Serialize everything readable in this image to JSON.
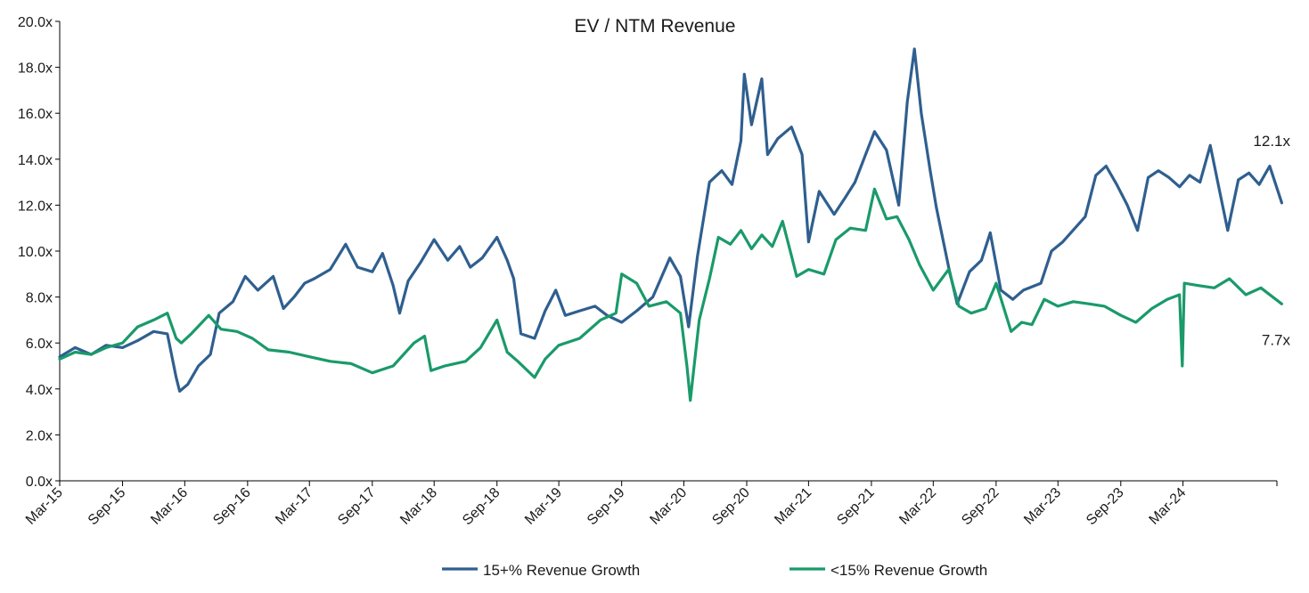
{
  "chart_data": {
    "type": "line",
    "title": "EV / NTM Revenue",
    "xlabel": "",
    "ylabel": "",
    "ylim": [
      0,
      20
    ],
    "y_ticks": [
      "0.0x",
      "2.0x",
      "4.0x",
      "6.0x",
      "8.0x",
      "10.0x",
      "12.0x",
      "14.0x",
      "16.0x",
      "18.0x",
      "20.0x"
    ],
    "x_range": [
      "2015-03",
      "2024-12"
    ],
    "x_ticks": [
      {
        "date": "2015-03",
        "label": "Mar-15"
      },
      {
        "date": "2015-09",
        "label": "Sep-15"
      },
      {
        "date": "2016-03",
        "label": "Mar-16"
      },
      {
        "date": "2016-09",
        "label": "Sep-16"
      },
      {
        "date": "2017-03",
        "label": "Mar-17"
      },
      {
        "date": "2017-09",
        "label": "Sep-17"
      },
      {
        "date": "2018-03",
        "label": "Mar-18"
      },
      {
        "date": "2018-09",
        "label": "Sep-18"
      },
      {
        "date": "2019-03",
        "label": "Mar-19"
      },
      {
        "date": "2019-09",
        "label": "Sep-19"
      },
      {
        "date": "2020-03",
        "label": "Mar-20"
      },
      {
        "date": "2020-09",
        "label": "Sep-20"
      },
      {
        "date": "2021-03",
        "label": "Mar-21"
      },
      {
        "date": "2021-09",
        "label": "Sep-21"
      },
      {
        "date": "2022-03",
        "label": "Mar-22"
      },
      {
        "date": "2022-09",
        "label": "Sep-22"
      },
      {
        "date": "2023-03",
        "label": "Mar-23"
      },
      {
        "date": "2023-09",
        "label": "Sep-23"
      },
      {
        "date": "2024-03",
        "label": "Mar-24"
      }
    ],
    "grid": false,
    "legend_position": "bottom",
    "series": [
      {
        "name": "15+% Revenue Growth",
        "color": "#2f5f8f",
        "end_label": "12.1x",
        "points": [
          [
            "2015-03-01",
            5.4
          ],
          [
            "2015-04-15",
            5.8
          ],
          [
            "2015-06-01",
            5.5
          ],
          [
            "2015-07-15",
            5.9
          ],
          [
            "2015-09-01",
            5.8
          ],
          [
            "2015-10-15",
            6.1
          ],
          [
            "2015-12-01",
            6.5
          ],
          [
            "2016-01-10",
            6.4
          ],
          [
            "2016-02-05",
            4.5
          ],
          [
            "2016-02-15",
            3.9
          ],
          [
            "2016-03-10",
            4.2
          ],
          [
            "2016-04-10",
            5.0
          ],
          [
            "2016-05-15",
            5.5
          ],
          [
            "2016-06-10",
            7.3
          ],
          [
            "2016-07-20",
            7.8
          ],
          [
            "2016-08-25",
            8.9
          ],
          [
            "2016-10-01",
            8.3
          ],
          [
            "2016-11-15",
            8.9
          ],
          [
            "2016-12-15",
            7.5
          ],
          [
            "2017-01-15",
            8.0
          ],
          [
            "2017-02-15",
            8.6
          ],
          [
            "2017-03-15",
            8.8
          ],
          [
            "2017-05-01",
            9.2
          ],
          [
            "2017-06-15",
            10.3
          ],
          [
            "2017-07-20",
            9.3
          ],
          [
            "2017-09-01",
            9.1
          ],
          [
            "2017-10-01",
            9.9
          ],
          [
            "2017-11-01",
            8.5
          ],
          [
            "2017-11-20",
            7.3
          ],
          [
            "2017-12-15",
            8.7
          ],
          [
            "2018-01-20",
            9.5
          ],
          [
            "2018-03-01",
            10.5
          ],
          [
            "2018-04-10",
            9.6
          ],
          [
            "2018-05-15",
            10.2
          ],
          [
            "2018-06-15",
            9.3
          ],
          [
            "2018-07-20",
            9.7
          ],
          [
            "2018-09-01",
            10.6
          ],
          [
            "2018-10-01",
            9.6
          ],
          [
            "2018-10-20",
            8.8
          ],
          [
            "2018-11-10",
            6.4
          ],
          [
            "2018-12-20",
            6.2
          ],
          [
            "2019-01-20",
            7.4
          ],
          [
            "2019-02-20",
            8.3
          ],
          [
            "2019-03-20",
            7.2
          ],
          [
            "2019-05-01",
            7.4
          ],
          [
            "2019-06-15",
            7.6
          ],
          [
            "2019-07-20",
            7.2
          ],
          [
            "2019-09-01",
            6.9
          ],
          [
            "2019-10-15",
            7.4
          ],
          [
            "2019-12-01",
            8.0
          ],
          [
            "2020-01-20",
            9.7
          ],
          [
            "2020-02-20",
            8.9
          ],
          [
            "2020-03-15",
            6.7
          ],
          [
            "2020-04-10",
            9.8
          ],
          [
            "2020-05-15",
            13.0
          ],
          [
            "2020-06-20",
            13.5
          ],
          [
            "2020-07-20",
            12.9
          ],
          [
            "2020-08-15",
            14.8
          ],
          [
            "2020-08-25",
            17.7
          ],
          [
            "2020-09-15",
            15.5
          ],
          [
            "2020-10-15",
            17.5
          ],
          [
            "2020-11-01",
            14.2
          ],
          [
            "2020-12-01",
            14.9
          ],
          [
            "2021-01-10",
            15.4
          ],
          [
            "2021-02-10",
            14.2
          ],
          [
            "2021-03-01",
            10.4
          ],
          [
            "2021-04-01",
            12.6
          ],
          [
            "2021-05-15",
            11.6
          ],
          [
            "2021-06-15",
            12.3
          ],
          [
            "2021-07-15",
            13.0
          ],
          [
            "2021-08-15",
            14.2
          ],
          [
            "2021-09-10",
            15.2
          ],
          [
            "2021-10-15",
            14.4
          ],
          [
            "2021-11-20",
            12.0
          ],
          [
            "2021-12-15",
            16.5
          ],
          [
            "2022-01-05",
            18.8
          ],
          [
            "2022-01-25",
            16.0
          ],
          [
            "2022-02-20",
            13.5
          ],
          [
            "2022-03-10",
            11.9
          ],
          [
            "2022-04-15",
            9.3
          ],
          [
            "2022-05-10",
            7.7
          ],
          [
            "2022-06-15",
            9.1
          ],
          [
            "2022-07-20",
            9.6
          ],
          [
            "2022-08-15",
            10.8
          ],
          [
            "2022-09-15",
            8.3
          ],
          [
            "2022-10-20",
            7.9
          ],
          [
            "2022-11-20",
            8.3
          ],
          [
            "2023-01-10",
            8.6
          ],
          [
            "2023-02-10",
            10.0
          ],
          [
            "2023-03-15",
            10.4
          ],
          [
            "2023-04-20",
            11.0
          ],
          [
            "2023-05-20",
            11.5
          ],
          [
            "2023-06-20",
            13.3
          ],
          [
            "2023-07-20",
            13.7
          ],
          [
            "2023-08-20",
            12.9
          ],
          [
            "2023-09-20",
            12.0
          ],
          [
            "2023-10-20",
            10.9
          ],
          [
            "2023-11-20",
            13.2
          ],
          [
            "2023-12-20",
            13.5
          ],
          [
            "2024-01-20",
            13.2
          ],
          [
            "2024-02-20",
            12.8
          ],
          [
            "2024-03-20",
            13.3
          ],
          [
            "2024-04-20",
            13.0
          ],
          [
            "2024-05-20",
            14.6
          ],
          [
            "2024-06-15",
            12.7
          ],
          [
            "2024-07-10",
            10.9
          ],
          [
            "2024-08-10",
            13.1
          ],
          [
            "2024-09-10",
            13.4
          ],
          [
            "2024-10-10",
            12.9
          ],
          [
            "2024-11-10",
            13.7
          ],
          [
            "2024-12-15",
            12.1
          ]
        ]
      },
      {
        "name": "<15% Revenue Growth",
        "color": "#1a9a6a",
        "end_label": "7.7x",
        "points": [
          [
            "2015-03-01",
            5.3
          ],
          [
            "2015-04-15",
            5.6
          ],
          [
            "2015-06-01",
            5.5
          ],
          [
            "2015-07-15",
            5.8
          ],
          [
            "2015-09-01",
            6.0
          ],
          [
            "2015-10-15",
            6.7
          ],
          [
            "2015-12-01",
            7.0
          ],
          [
            "2016-01-10",
            7.3
          ],
          [
            "2016-02-05",
            6.2
          ],
          [
            "2016-02-20",
            6.0
          ],
          [
            "2016-03-20",
            6.4
          ],
          [
            "2016-05-10",
            7.2
          ],
          [
            "2016-06-15",
            6.6
          ],
          [
            "2016-08-01",
            6.5
          ],
          [
            "2016-09-15",
            6.2
          ],
          [
            "2016-11-01",
            5.7
          ],
          [
            "2017-01-01",
            5.6
          ],
          [
            "2017-03-01",
            5.4
          ],
          [
            "2017-05-01",
            5.2
          ],
          [
            "2017-07-01",
            5.1
          ],
          [
            "2017-09-01",
            4.7
          ],
          [
            "2017-11-01",
            5.0
          ],
          [
            "2018-01-01",
            6.0
          ],
          [
            "2018-02-01",
            6.3
          ],
          [
            "2018-02-20",
            4.8
          ],
          [
            "2018-04-01",
            5.0
          ],
          [
            "2018-06-01",
            5.2
          ],
          [
            "2018-07-15",
            5.8
          ],
          [
            "2018-09-01",
            7.0
          ],
          [
            "2018-10-01",
            5.6
          ],
          [
            "2018-11-01",
            5.2
          ],
          [
            "2018-12-20",
            4.5
          ],
          [
            "2019-01-20",
            5.3
          ],
          [
            "2019-03-01",
            5.9
          ],
          [
            "2019-05-01",
            6.2
          ],
          [
            "2019-07-01",
            7.0
          ],
          [
            "2019-08-15",
            7.3
          ],
          [
            "2019-09-01",
            9.0
          ],
          [
            "2019-10-15",
            8.6
          ],
          [
            "2019-11-20",
            7.6
          ],
          [
            "2020-01-10",
            7.8
          ],
          [
            "2020-02-20",
            7.3
          ],
          [
            "2020-03-10",
            5.0
          ],
          [
            "2020-03-20",
            3.5
          ],
          [
            "2020-04-15",
            7.0
          ],
          [
            "2020-05-15",
            8.8
          ],
          [
            "2020-06-10",
            10.6
          ],
          [
            "2020-07-15",
            10.3
          ],
          [
            "2020-08-15",
            10.9
          ],
          [
            "2020-09-15",
            10.1
          ],
          [
            "2020-10-15",
            10.7
          ],
          [
            "2020-11-15",
            10.2
          ],
          [
            "2020-12-15",
            11.3
          ],
          [
            "2021-01-10",
            9.8
          ],
          [
            "2021-01-25",
            8.9
          ],
          [
            "2021-03-01",
            9.2
          ],
          [
            "2021-04-15",
            9.0
          ],
          [
            "2021-05-20",
            10.5
          ],
          [
            "2021-07-01",
            11.0
          ],
          [
            "2021-08-15",
            10.9
          ],
          [
            "2021-09-10",
            12.7
          ],
          [
            "2021-10-15",
            11.4
          ],
          [
            "2021-11-15",
            11.5
          ],
          [
            "2021-12-20",
            10.5
          ],
          [
            "2022-01-20",
            9.4
          ],
          [
            "2022-03-01",
            8.3
          ],
          [
            "2022-04-15",
            9.2
          ],
          [
            "2022-05-15",
            7.6
          ],
          [
            "2022-06-20",
            7.3
          ],
          [
            "2022-08-01",
            7.5
          ],
          [
            "2022-09-01",
            8.6
          ],
          [
            "2022-10-15",
            6.5
          ],
          [
            "2022-11-15",
            6.9
          ],
          [
            "2022-12-15",
            6.8
          ],
          [
            "2023-01-20",
            7.9
          ],
          [
            "2023-03-01",
            7.6
          ],
          [
            "2023-04-15",
            7.8
          ],
          [
            "2023-06-01",
            7.7
          ],
          [
            "2023-07-15",
            7.6
          ],
          [
            "2023-09-01",
            7.2
          ],
          [
            "2023-10-15",
            6.9
          ],
          [
            "2023-12-01",
            7.5
          ],
          [
            "2024-01-15",
            7.9
          ],
          [
            "2024-02-20",
            8.1
          ],
          [
            "2024-02-28",
            5.0
          ],
          [
            "2024-03-05",
            8.6
          ],
          [
            "2024-04-15",
            8.5
          ],
          [
            "2024-06-01",
            8.4
          ],
          [
            "2024-07-15",
            8.8
          ],
          [
            "2024-09-01",
            8.1
          ],
          [
            "2024-10-15",
            8.4
          ],
          [
            "2024-12-15",
            7.7
          ]
        ]
      }
    ]
  }
}
